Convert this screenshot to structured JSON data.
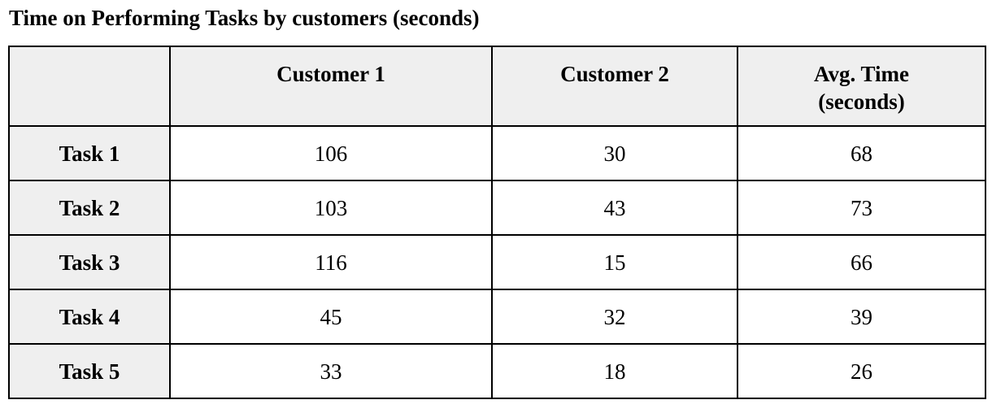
{
  "title": "Time on Performing Tasks by customers (seconds)",
  "chart_data": {
    "type": "table",
    "title": "Time on Performing Tasks by customers (seconds)",
    "columns": [
      "",
      "Customer 1",
      "Customer 2",
      "Avg. Time (seconds)"
    ],
    "header": {
      "corner": "",
      "customer1": "Customer 1",
      "customer2": "Customer 2",
      "avg_line1": "Avg. Time",
      "avg_line2": "(seconds)"
    },
    "rows": [
      {
        "label": "Task 1",
        "customer1": "106",
        "customer2": "30",
        "avg": "68"
      },
      {
        "label": "Task 2",
        "customer1": "103",
        "customer2": "43",
        "avg": "73"
      },
      {
        "label": "Task 3",
        "customer1": "116",
        "customer2": "15",
        "avg": "66"
      },
      {
        "label": "Task 4",
        "customer1": "45",
        "customer2": "32",
        "avg": "39"
      },
      {
        "label": "Task 5",
        "customer1": "33",
        "customer2": "18",
        "avg": "26"
      }
    ],
    "colors": {
      "header_background": "#efefef",
      "cell_background": "#ffffff",
      "border": "#000000"
    }
  }
}
